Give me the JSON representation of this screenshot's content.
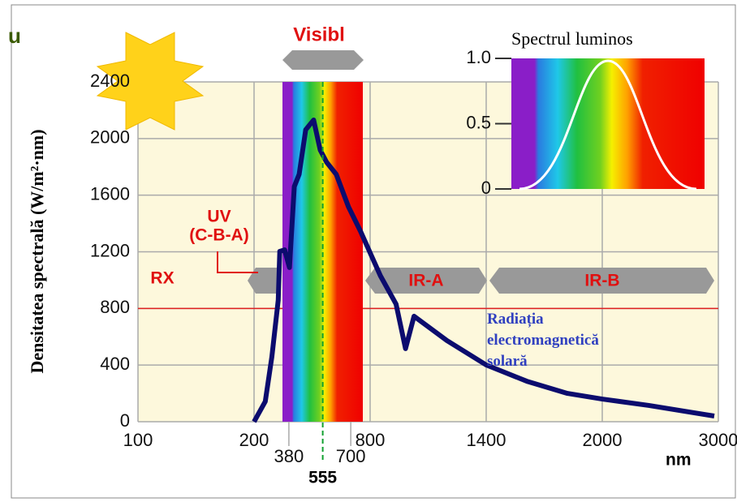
{
  "chart_data": {
    "type": "line",
    "corner_text": "u",
    "y_label": "Densitatea spectrală (W/m²·nm)",
    "x_unit": "nm",
    "x": [
      200,
      258,
      292,
      325,
      333,
      358,
      383,
      408,
      433,
      467,
      508,
      542,
      575,
      625,
      688,
      750,
      853,
      934,
      983,
      1027,
      1197,
      1400,
      1610,
      1820,
      2000,
      2401,
      2965
    ],
    "series": [
      {
        "name": "Radiația electromagnetică solară",
        "color": "#0c0c6e",
        "values": [
          0,
          143,
          458,
          859,
          1203,
          1214,
          1089,
          1661,
          1747,
          2062,
          2131,
          1919,
          1833,
          1747,
          1518,
          1346,
          1031,
          831,
          516,
          745,
          573,
          401,
          286,
          200,
          160,
          115,
          40
        ]
      }
    ],
    "xticks": [
      100,
      200,
      800,
      1400,
      2000,
      3000
    ],
    "minor_xticks": [
      380,
      700
    ],
    "peak_xtick": 555,
    "ylim": [
      0,
      2400
    ],
    "yticks": [
      0,
      400,
      800,
      1200,
      1600,
      2000,
      2400
    ],
    "reference_line": 800,
    "grid": true,
    "bands": {
      "visible": "Visibl",
      "uv": "UV",
      "uv_sub": "(C-B-A)",
      "rx": "RX",
      "ir_a": "IR-A",
      "ir_b": "IR-B"
    },
    "inset": {
      "title": "Spectrul luminos",
      "ylim": [
        0,
        1
      ],
      "yticks": [
        0,
        0.5,
        {
          "value": 1,
          "label": "1.0"
        }
      ]
    }
  }
}
